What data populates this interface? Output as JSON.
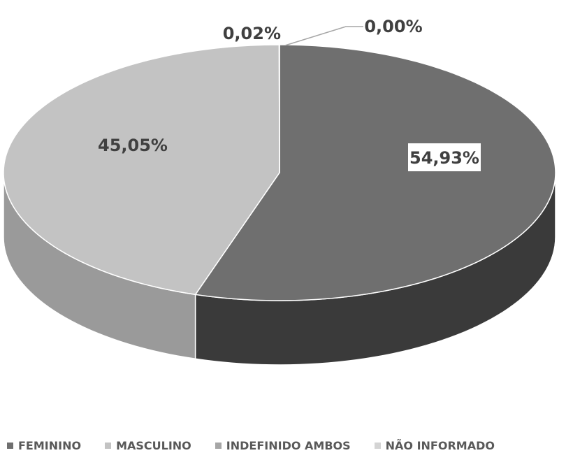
{
  "chart_data": {
    "type": "pie",
    "style": "3d",
    "title": "",
    "slices": [
      {
        "label": "FEMININO",
        "value": 54.93,
        "display": "54,93%",
        "color": "#6f6f6f",
        "side_color": "#3a3a3a"
      },
      {
        "label": "MASCULINO",
        "value": 45.05,
        "display": "45,05%",
        "color": "#c3c3c3",
        "side_color": "#9a9a9a"
      },
      {
        "label": "INDEFINIDO AMBOS",
        "value": 0.02,
        "display": "0,02%",
        "color": "#a6a6a6",
        "side_color": "#858585"
      },
      {
        "label": "NÃO INFORMADO",
        "value": 0.0,
        "display": "0,00%",
        "color": "#d4d4d4",
        "side_color": "#b0b0b0"
      }
    ],
    "legend_position": "bottom"
  }
}
